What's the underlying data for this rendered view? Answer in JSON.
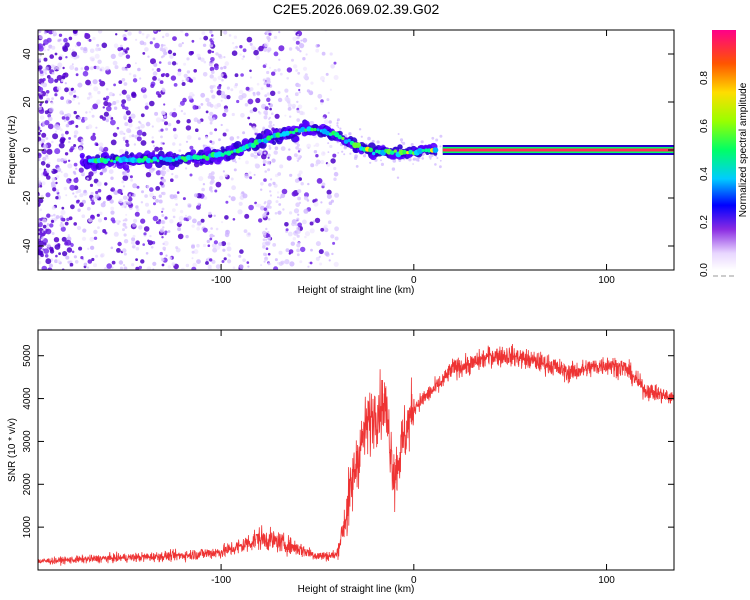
{
  "title": "C2E5.2026.069.02.39.G02",
  "chart_data": [
    {
      "type": "heatmap",
      "xlabel": "Height of straight line (km)",
      "ylabel": "Frequency (Hz)",
      "xlim": [
        -195,
        135
      ],
      "ylim": [
        -50,
        50
      ],
      "xticks": [
        -100,
        0,
        100
      ],
      "xtick_labels": [
        "-100",
        "0",
        "100"
      ],
      "yticks": [
        -40,
        -20,
        0,
        20,
        40
      ],
      "ytick_labels": [
        "-40",
        "-20",
        "0",
        "20",
        "40"
      ],
      "ridge": {
        "x": [
          -170,
          -150,
          -130,
          -110,
          -95,
          -85,
          -75,
          -65,
          -55,
          -48,
          -42,
          -35,
          -28,
          -20,
          -10,
          0,
          5,
          15,
          30,
          60,
          100,
          135
        ],
        "y": [
          -5,
          -4,
          -4,
          -3,
          -1,
          2,
          5,
          7,
          9,
          8,
          7,
          4,
          1,
          -1,
          -1,
          -1,
          0,
          0,
          0,
          0,
          0,
          0
        ]
      },
      "colorbar": {
        "label": "Normalized spectral amplitude",
        "range": [
          0,
          1
        ],
        "ticks": [
          0,
          0.2,
          0.4,
          0.6,
          0.8
        ],
        "tick_labels": [
          "0.0",
          "0.2",
          "0.4",
          "0.6",
          "0.8"
        ]
      }
    },
    {
      "type": "line",
      "xlabel": "Height of straight line (km)",
      "ylabel": "SNR (10 * v/v)",
      "xlim": [
        -195,
        135
      ],
      "ylim": [
        0,
        5600
      ],
      "xticks": [
        -100,
        0,
        100
      ],
      "xtick_labels": [
        "-100",
        "0",
        "100"
      ],
      "yticks": [
        1000,
        2000,
        3000,
        4000,
        5000
      ],
      "ytick_labels": [
        "1000",
        "2000",
        "3000",
        "4000",
        "5000"
      ],
      "color": "#ee3333",
      "series": [
        {
          "name": "SNR",
          "x": [
            -195,
            -180,
            -160,
            -140,
            -120,
            -100,
            -90,
            -80,
            -70,
            -60,
            -50,
            -45,
            -40,
            -35,
            -30,
            -25,
            -20,
            -15,
            -10,
            -5,
            0,
            5,
            10,
            15,
            20,
            30,
            40,
            50,
            60,
            70,
            80,
            90,
            100,
            110,
            120,
            135
          ],
          "y": [
            200,
            230,
            270,
            300,
            340,
            420,
            550,
            750,
            650,
            500,
            330,
            330,
            350,
            1300,
            2500,
            3300,
            3700,
            3900,
            2200,
            3100,
            3800,
            4000,
            4200,
            4400,
            4700,
            4800,
            5000,
            5000,
            4900,
            4800,
            4600,
            4700,
            4800,
            4700,
            4200,
            4000
          ]
        }
      ]
    }
  ]
}
